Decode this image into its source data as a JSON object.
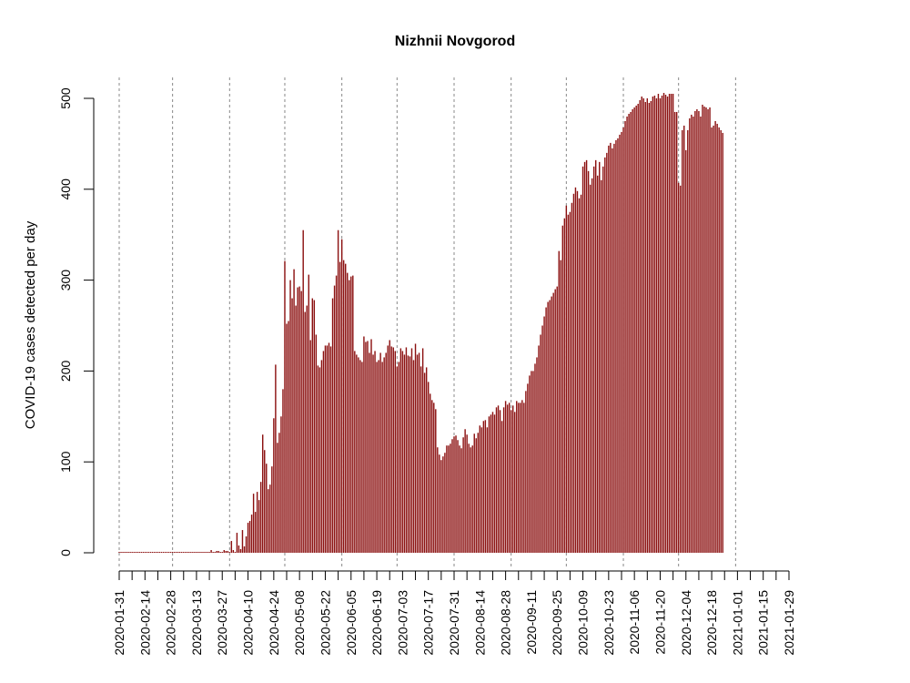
{
  "chart_data": {
    "type": "bar",
    "title": "Nizhnii Novgorod",
    "xlabel": "",
    "ylabel": "COVID-19 cases detected per day",
    "ylim": [
      0,
      500
    ],
    "y_ticks": [
      0,
      100,
      200,
      300,
      400,
      500
    ],
    "x_start": "2020-01-31",
    "x_end": "2021-01-29",
    "x_tick_labels": [
      "2020-01-31",
      "2020-02-14",
      "2020-02-28",
      "2020-03-13",
      "2020-03-27",
      "2020-04-10",
      "2020-04-24",
      "2020-05-08",
      "2020-05-22",
      "2020-06-05",
      "2020-06-19",
      "2020-07-03",
      "2020-07-17",
      "2020-07-31",
      "2020-08-14",
      "2020-08-28",
      "2020-09-11",
      "2020-09-25",
      "2020-10-09",
      "2020-10-23",
      "2020-11-06",
      "2020-11-20",
      "2020-12-04",
      "2020-12-18",
      "2021-01-01",
      "2021-01-15",
      "2021-01-29"
    ],
    "gridlines_x": [
      "2020-01-31",
      "2020-02-29",
      "2020-03-31",
      "2020-04-30",
      "2020-05-31",
      "2020-06-30",
      "2020-07-31",
      "2020-08-31",
      "2020-09-30",
      "2020-10-31",
      "2020-11-30",
      "2020-12-31"
    ],
    "grid": "vertical dashed at month starts",
    "bar_color": "#8b1010",
    "series": [
      {
        "values": [
          0,
          0,
          0,
          0,
          0,
          0,
          0,
          0,
          0,
          0,
          0,
          0,
          0,
          0,
          0,
          0,
          0,
          0,
          0,
          0,
          0,
          0,
          0,
          0,
          0,
          0,
          0,
          0,
          0,
          0,
          0,
          0,
          0,
          0,
          0,
          1,
          0,
          1,
          0,
          0,
          0,
          0,
          0,
          0,
          1,
          1,
          0,
          0,
          1,
          1,
          3,
          1,
          1,
          2,
          2,
          1,
          1,
          3,
          2,
          2,
          1,
          13,
          3,
          1,
          22,
          8,
          4,
          25,
          7,
          18,
          33,
          35,
          42,
          65,
          45,
          67,
          58,
          78,
          130,
          113,
          98,
          70,
          75,
          95,
          148,
          207,
          121,
          132,
          150,
          180,
          321,
          252,
          255,
          300,
          280,
          312,
          272,
          292,
          293,
          288,
          355,
          265,
          272,
          306,
          234,
          280,
          278,
          240,
          206,
          204,
          212,
          222,
          228,
          228,
          231,
          227,
          280,
          294,
          305,
          355,
          320,
          345,
          322,
          318,
          308,
          300,
          304,
          305,
          222,
          218,
          215,
          212,
          210,
          238,
          232,
          233,
          220,
          235,
          218,
          222,
          210,
          212,
          220,
          210,
          215,
          220,
          228,
          234,
          227,
          226,
          222,
          205,
          210,
          225,
          222,
          218,
          226,
          217,
          216,
          225,
          212,
          230,
          218,
          220,
          205,
          225,
          198,
          204,
          188,
          175,
          168,
          165,
          158,
          116,
          108,
          102,
          106,
          110,
          118,
          118,
          120,
          125,
          128,
          129,
          124,
          118,
          115,
          127,
          136,
          130,
          120,
          116,
          118,
          131,
          126,
          132,
          140,
          138,
          145,
          146,
          138,
          150,
          152,
          155,
          152,
          160,
          162,
          157,
          145,
          160,
          167,
          163,
          165,
          157,
          162,
          155,
          167,
          165,
          165,
          168,
          165,
          178,
          186,
          195,
          200,
          200,
          208,
          215,
          228,
          240,
          250,
          260,
          270,
          276,
          278,
          282,
          286,
          290,
          293,
          332,
          322,
          360,
          368,
          382,
          372,
          375,
          385,
          395,
          402,
          398,
          390,
          394,
          425,
          430,
          432,
          420,
          405,
          412,
          425,
          432,
          415,
          430,
          410,
          425,
          435,
          440,
          448,
          451,
          445,
          450,
          454,
          456,
          460,
          463,
          468,
          475,
          480,
          483,
          485,
          488,
          490,
          492,
          494,
          498,
          502,
          500,
          496,
          500,
          495,
          497,
          502,
          503,
          500,
          505,
          500,
          503,
          506,
          504,
          502,
          505,
          505,
          505,
          485,
          485,
          407,
          404,
          465,
          470,
          443,
          465,
          478,
          482,
          480,
          486,
          488,
          486,
          480,
          493,
          491,
          490,
          488,
          490,
          468,
          470,
          475,
          472,
          468,
          465,
          462
        ]
      }
    ]
  }
}
